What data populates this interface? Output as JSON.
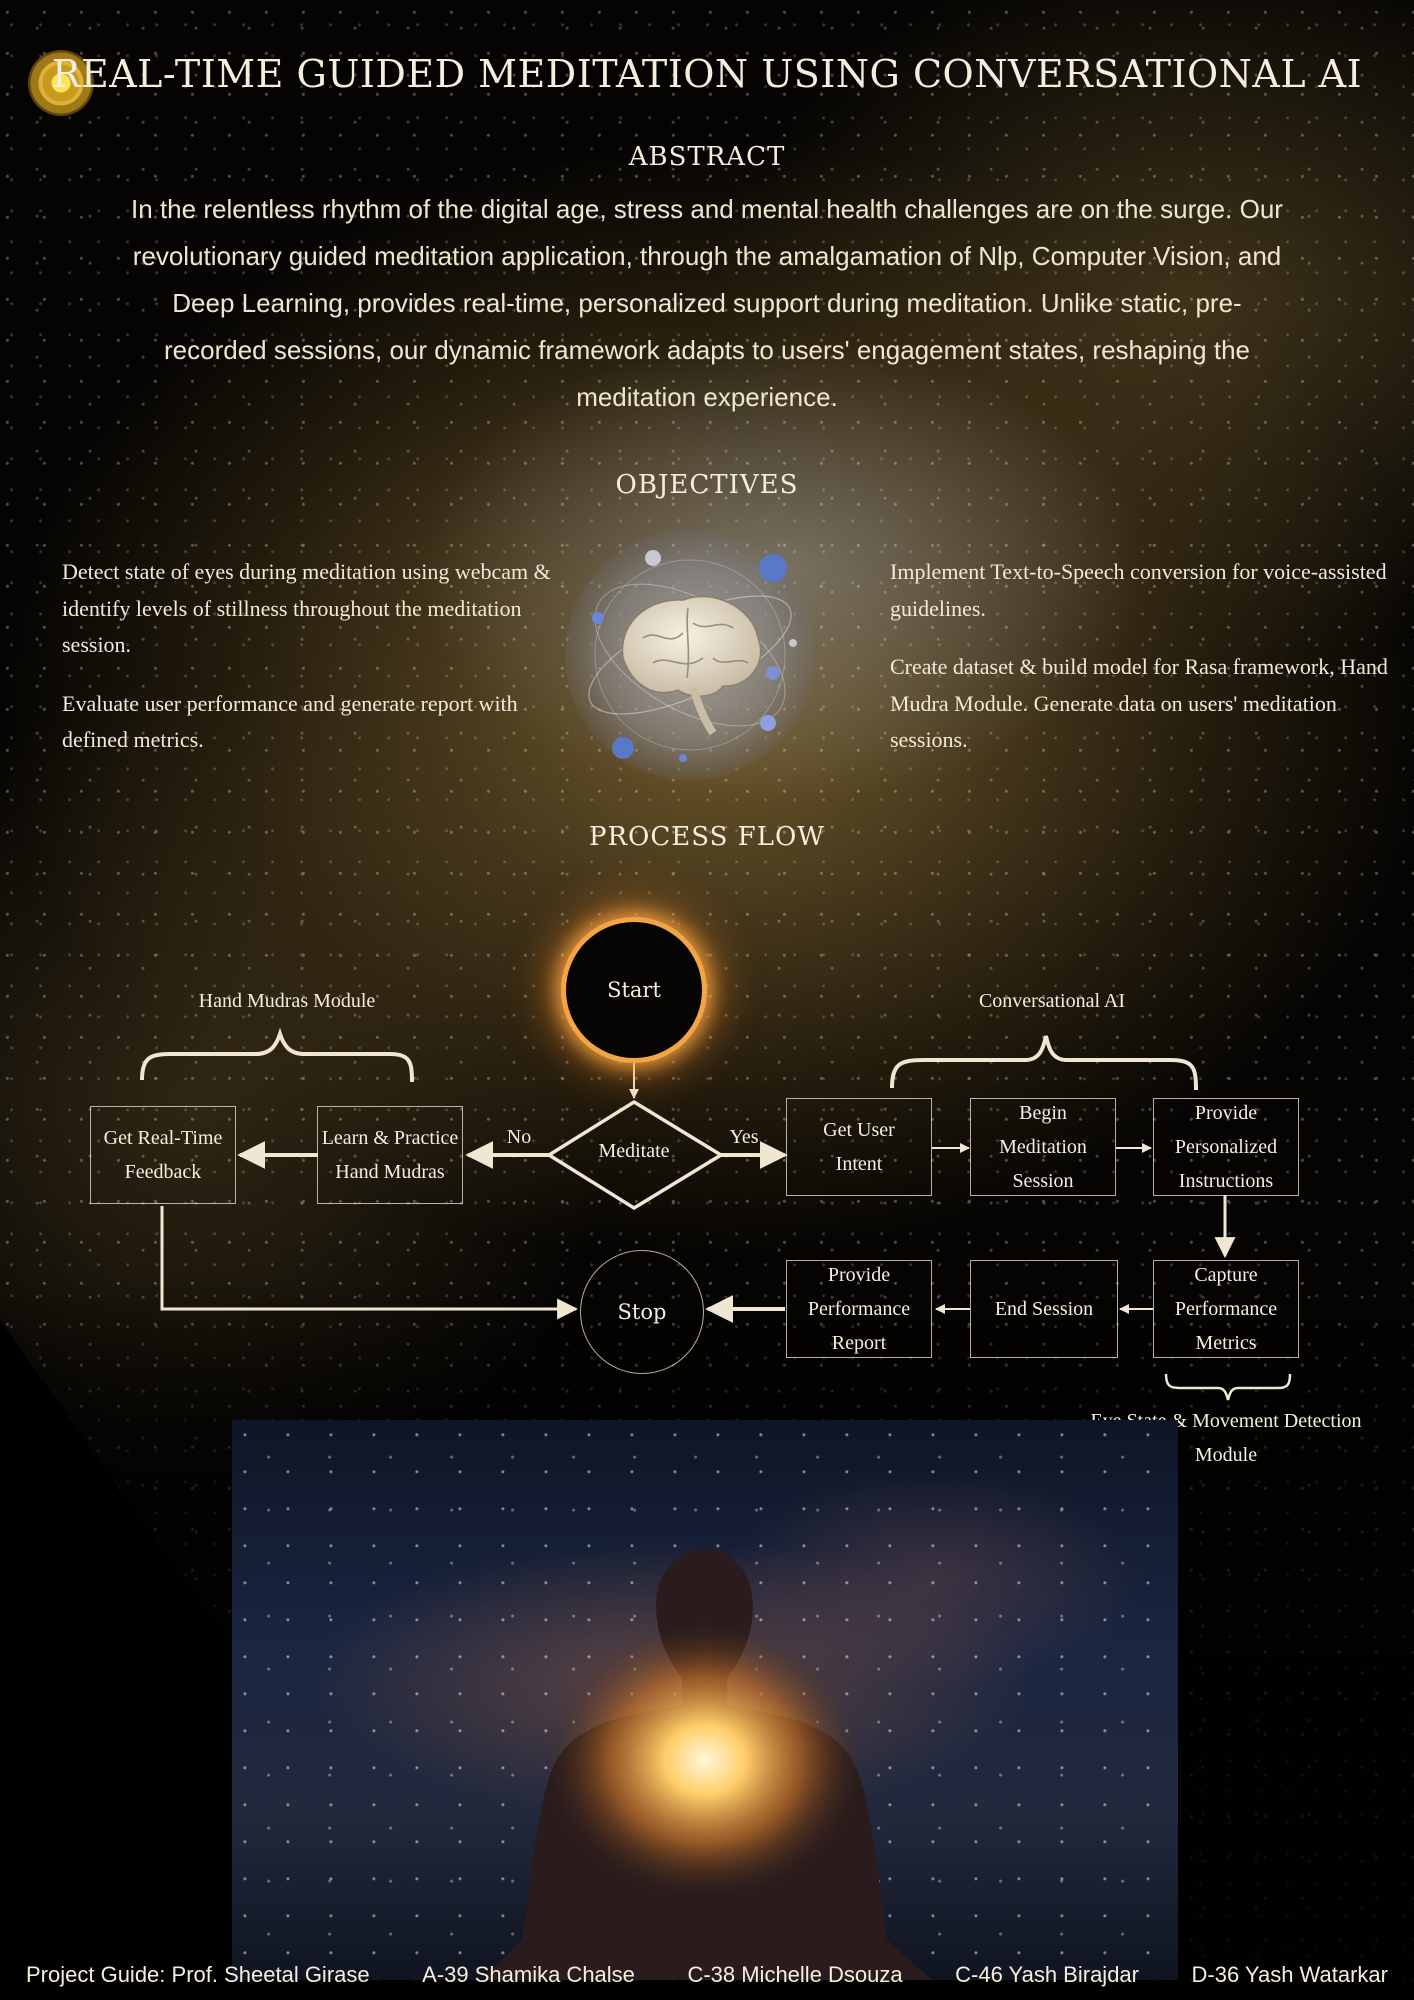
{
  "title": "REAL-TIME GUIDED MEDITATION USING CONVERSATIONAL AI",
  "abstract": {
    "heading": "ABSTRACT",
    "body": "In the relentless rhythm of the digital age, stress and mental health challenges are on the surge. Our revolutionary guided meditation application, through the amalgamation of Nlp, Computer Vision, and Deep Learning, provides real-time, personalized support during meditation. Unlike static, pre-recorded sessions, our dynamic framework adapts to users' engagement states, reshaping the meditation experience."
  },
  "objectives": {
    "heading": "OBJECTIVES",
    "left": [
      "Detect state of eyes during meditation using webcam & identify levels of stillness throughout the meditation session.",
      "Evaluate user performance and generate report with defined metrics."
    ],
    "right": [
      "Implement Text-to-Speech conversion for voice-assisted guidelines.",
      "Create dataset & build model for Rasa framework, Hand Mudra Module. Generate data on users' meditation sessions."
    ]
  },
  "process_flow": {
    "heading": "PROCESS FLOW",
    "start": "Start",
    "decision": "Meditate",
    "no_label": "No",
    "yes_label": "Yes",
    "stop": "Stop",
    "groups": {
      "hand_mudras": "Hand Mudras Module",
      "conversational_ai": "Conversational AI",
      "eye_state": "Eye State & Movement Detection Module"
    },
    "steps": {
      "learn_mudras": "Learn & Practice Hand Mudras",
      "realtime_feedback": "Get Real-Time Feedback",
      "user_intent": "Get User Intent",
      "begin_session": "Begin Meditation Session",
      "personalized": "Provide Personalized Instructions",
      "capture_metrics": "Capture Performance Metrics",
      "end_session": "End Session",
      "performance_report": "Provide Performance Report"
    }
  },
  "footer": {
    "guide": "Project Guide: Prof. Sheetal Girase",
    "members": [
      "A-39 Shamika Chalse",
      "C-38 Michelle Dsouza",
      "C-46 Yash Birajdar",
      "D-36 Yash Watarkar"
    ]
  },
  "colors": {
    "text": "#f6eedc",
    "glow": "#f3a444",
    "line": "#f0e6d2"
  }
}
